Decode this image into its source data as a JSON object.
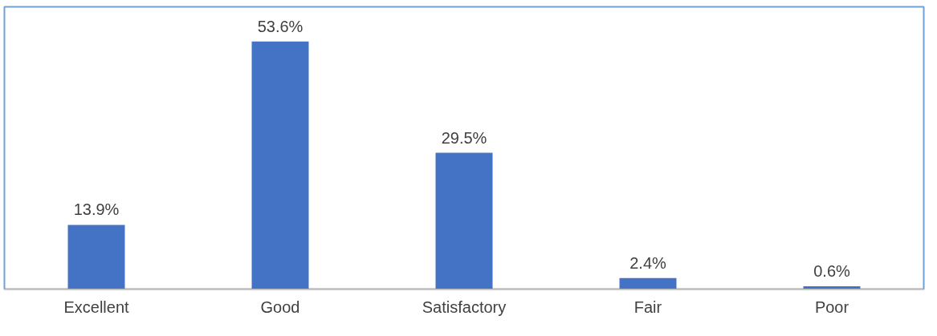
{
  "chart_data": {
    "type": "bar",
    "categories": [
      "Excellent",
      "Good",
      "Satisfactory",
      "Fair",
      "Poor"
    ],
    "values": [
      13.9,
      53.6,
      29.5,
      2.4,
      0.6
    ],
    "value_labels": [
      "13.9%",
      "53.6%",
      "29.5%",
      "2.4%",
      "0.6%"
    ],
    "color": "#4472c4"
  }
}
